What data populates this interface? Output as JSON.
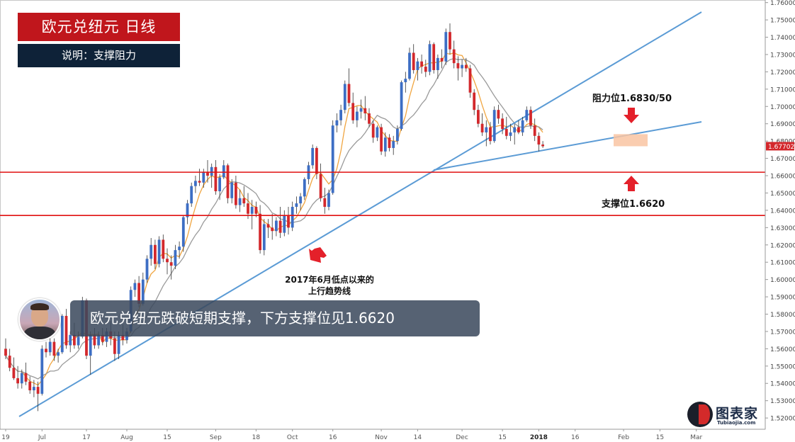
{
  "header": {
    "title": "欧元兑纽元  日线",
    "subtitle": "说明：支撑阻力"
  },
  "banner": {
    "text": "欧元兑纽元跌破短期支撑，下方支撑位见1.6620"
  },
  "logo": {
    "name": "图表家",
    "url": "Tubiaojia.com"
  },
  "colors": {
    "bull": "#3d6ec4",
    "bear": "#d3282c",
    "ma_fast": "#f0a540",
    "ma_slow": "#9a9a9a",
    "trendline": "#5b9bd5",
    "hline": "#e01010",
    "arrow": "#e4202a",
    "zone": "#f9c4a2"
  },
  "chart_data": {
    "type": "candlestick",
    "y_ticks": [
      1.52,
      1.53,
      1.54,
      1.55,
      1.56,
      1.57,
      1.58,
      1.59,
      1.6,
      1.61,
      1.62,
      1.63,
      1.64,
      1.65,
      1.66,
      1.67,
      1.68,
      1.69,
      1.7,
      1.71,
      1.72,
      1.73,
      1.74,
      1.75,
      1.76
    ],
    "ylim": [
      1.5135,
      1.7615
    ],
    "x_labels": [
      {
        "label": "19",
        "bar": 0
      },
      {
        "label": "Jul",
        "bar": 9
      },
      {
        "label": "17",
        "bar": 20
      },
      {
        "label": "Aug",
        "bar": 30
      },
      {
        "label": "15",
        "bar": 40
      },
      {
        "label": "Sep",
        "bar": 52
      },
      {
        "label": "18",
        "bar": 62
      },
      {
        "label": "Oct",
        "bar": 71
      },
      {
        "label": "16",
        "bar": 81
      },
      {
        "label": "Nov",
        "bar": 93
      },
      {
        "label": "14",
        "bar": 102
      },
      {
        "label": "Dec",
        "bar": 113
      },
      {
        "label": "15",
        "bar": 123
      },
      {
        "label": "2018",
        "bar": 132
      },
      {
        "label": "16",
        "bar": 141
      },
      {
        "label": "Feb",
        "bar": 153
      },
      {
        "label": "15",
        "bar": 162
      },
      {
        "label": "Mar",
        "bar": 171
      }
    ],
    "last_price_label": "1.67702",
    "ohlc": [
      [
        1.56,
        1.566,
        1.554,
        1.556
      ],
      [
        1.556,
        1.56,
        1.547,
        1.549
      ],
      [
        1.549,
        1.555,
        1.542,
        1.543
      ],
      [
        1.543,
        1.55,
        1.537,
        1.54
      ],
      [
        1.54,
        1.548,
        1.537,
        1.546
      ],
      [
        1.546,
        1.552,
        1.539,
        1.541
      ],
      [
        1.541,
        1.544,
        1.534,
        1.536
      ],
      [
        1.536,
        1.542,
        1.532,
        1.538
      ],
      [
        1.538,
        1.541,
        1.524,
        1.534
      ],
      [
        1.534,
        1.562,
        1.533,
        1.56
      ],
      [
        1.56,
        1.564,
        1.555,
        1.558
      ],
      [
        1.558,
        1.566,
        1.556,
        1.564
      ],
      [
        1.564,
        1.566,
        1.553,
        1.556
      ],
      [
        1.556,
        1.56,
        1.552,
        1.558
      ],
      [
        1.558,
        1.58,
        1.557,
        1.579
      ],
      [
        1.579,
        1.583,
        1.56,
        1.562
      ],
      [
        1.562,
        1.57,
        1.558,
        1.568
      ],
      [
        1.568,
        1.575,
        1.56,
        1.562
      ],
      [
        1.562,
        1.57,
        1.56,
        1.567
      ],
      [
        1.567,
        1.59,
        1.566,
        1.588
      ],
      [
        1.588,
        1.589,
        1.554,
        1.556
      ],
      [
        1.556,
        1.57,
        1.545,
        1.568
      ],
      [
        1.568,
        1.572,
        1.56,
        1.562
      ],
      [
        1.562,
        1.57,
        1.56,
        1.568
      ],
      [
        1.568,
        1.572,
        1.562,
        1.564
      ],
      [
        1.564,
        1.572,
        1.561,
        1.57
      ],
      [
        1.57,
        1.576,
        1.562,
        1.566
      ],
      [
        1.566,
        1.57,
        1.553,
        1.557
      ],
      [
        1.557,
        1.57,
        1.554,
        1.568
      ],
      [
        1.568,
        1.574,
        1.562,
        1.565
      ],
      [
        1.565,
        1.572,
        1.563,
        1.57
      ],
      [
        1.57,
        1.596,
        1.569,
        1.594
      ],
      [
        1.594,
        1.6,
        1.59,
        1.598
      ],
      [
        1.598,
        1.602,
        1.584,
        1.586
      ],
      [
        1.586,
        1.604,
        1.585,
        1.6
      ],
      [
        1.6,
        1.614,
        1.598,
        1.612
      ],
      [
        1.612,
        1.624,
        1.608,
        1.62
      ],
      [
        1.62,
        1.623,
        1.606,
        1.609
      ],
      [
        1.609,
        1.625,
        1.607,
        1.623
      ],
      [
        1.623,
        1.626,
        1.61,
        1.612
      ],
      [
        1.612,
        1.618,
        1.603,
        1.61
      ],
      [
        1.61,
        1.614,
        1.6,
        1.608
      ],
      [
        1.608,
        1.62,
        1.606,
        1.617
      ],
      [
        1.617,
        1.622,
        1.612,
        1.619
      ],
      [
        1.619,
        1.637,
        1.616,
        1.636
      ],
      [
        1.636,
        1.646,
        1.632,
        1.644
      ],
      [
        1.644,
        1.656,
        1.642,
        1.654
      ],
      [
        1.654,
        1.66,
        1.65,
        1.657
      ],
      [
        1.657,
        1.664,
        1.654,
        1.656
      ],
      [
        1.656,
        1.664,
        1.653,
        1.662
      ],
      [
        1.662,
        1.669,
        1.656,
        1.66
      ],
      [
        1.66,
        1.667,
        1.653,
        1.665
      ],
      [
        1.665,
        1.669,
        1.649,
        1.651
      ],
      [
        1.651,
        1.661,
        1.646,
        1.659
      ],
      [
        1.659,
        1.669,
        1.658,
        1.666
      ],
      [
        1.666,
        1.667,
        1.644,
        1.647
      ],
      [
        1.647,
        1.658,
        1.644,
        1.656
      ],
      [
        1.656,
        1.66,
        1.641,
        1.643
      ],
      [
        1.643,
        1.652,
        1.639,
        1.647
      ],
      [
        1.647,
        1.654,
        1.642,
        1.644
      ],
      [
        1.644,
        1.65,
        1.635,
        1.638
      ],
      [
        1.638,
        1.646,
        1.629,
        1.642
      ],
      [
        1.642,
        1.645,
        1.636,
        1.638
      ],
      [
        1.638,
        1.643,
        1.615,
        1.617
      ],
      [
        1.617,
        1.635,
        1.614,
        1.632
      ],
      [
        1.632,
        1.635,
        1.624,
        1.63
      ],
      [
        1.63,
        1.638,
        1.623,
        1.628
      ],
      [
        1.628,
        1.636,
        1.625,
        1.634
      ],
      [
        1.634,
        1.642,
        1.624,
        1.627
      ],
      [
        1.627,
        1.64,
        1.625,
        1.637
      ],
      [
        1.637,
        1.642,
        1.626,
        1.63
      ],
      [
        1.63,
        1.645,
        1.628,
        1.642
      ],
      [
        1.642,
        1.648,
        1.638,
        1.644
      ],
      [
        1.644,
        1.65,
        1.64,
        1.648
      ],
      [
        1.648,
        1.659,
        1.646,
        1.658
      ],
      [
        1.658,
        1.668,
        1.655,
        1.666
      ],
      [
        1.666,
        1.678,
        1.664,
        1.676
      ],
      [
        1.676,
        1.677,
        1.658,
        1.661
      ],
      [
        1.661,
        1.667,
        1.645,
        1.647
      ],
      [
        1.647,
        1.653,
        1.638,
        1.642
      ],
      [
        1.642,
        1.652,
        1.64,
        1.65
      ],
      [
        1.65,
        1.692,
        1.649,
        1.689
      ],
      [
        1.689,
        1.696,
        1.685,
        1.692
      ],
      [
        1.692,
        1.701,
        1.689,
        1.698
      ],
      [
        1.698,
        1.715,
        1.696,
        1.713
      ],
      [
        1.713,
        1.722,
        1.7,
        1.702
      ],
      [
        1.702,
        1.708,
        1.69,
        1.692
      ],
      [
        1.692,
        1.7,
        1.688,
        1.697
      ],
      [
        1.697,
        1.704,
        1.693,
        1.699
      ],
      [
        1.699,
        1.706,
        1.692,
        1.696
      ],
      [
        1.696,
        1.699,
        1.688,
        1.69
      ],
      [
        1.69,
        1.692,
        1.679,
        1.682
      ],
      [
        1.682,
        1.689,
        1.68,
        1.688
      ],
      [
        1.688,
        1.69,
        1.672,
        1.674
      ],
      [
        1.674,
        1.685,
        1.671,
        1.682
      ],
      [
        1.682,
        1.684,
        1.674,
        1.676
      ],
      [
        1.676,
        1.683,
        1.672,
        1.68
      ],
      [
        1.68,
        1.689,
        1.678,
        1.687
      ],
      [
        1.687,
        1.715,
        1.686,
        1.714
      ],
      [
        1.714,
        1.72,
        1.708,
        1.716
      ],
      [
        1.716,
        1.734,
        1.715,
        1.731
      ],
      [
        1.731,
        1.736,
        1.719,
        1.721
      ],
      [
        1.721,
        1.728,
        1.715,
        1.726
      ],
      [
        1.726,
        1.73,
        1.719,
        1.723
      ],
      [
        1.723,
        1.727,
        1.717,
        1.72
      ],
      [
        1.72,
        1.738,
        1.718,
        1.736
      ],
      [
        1.736,
        1.737,
        1.719,
        1.721
      ],
      [
        1.721,
        1.73,
        1.716,
        1.728
      ],
      [
        1.728,
        1.733,
        1.722,
        1.726
      ],
      [
        1.726,
        1.745,
        1.724,
        1.743
      ],
      [
        1.743,
        1.748,
        1.73,
        1.733
      ],
      [
        1.733,
        1.738,
        1.722,
        1.725
      ],
      [
        1.725,
        1.729,
        1.715,
        1.722
      ],
      [
        1.722,
        1.727,
        1.717,
        1.724
      ],
      [
        1.724,
        1.728,
        1.72,
        1.722
      ],
      [
        1.722,
        1.724,
        1.705,
        1.708
      ],
      [
        1.708,
        1.71,
        1.695,
        1.698
      ],
      [
        1.698,
        1.701,
        1.688,
        1.69
      ],
      [
        1.69,
        1.696,
        1.683,
        1.685
      ],
      [
        1.685,
        1.692,
        1.677,
        1.688
      ],
      [
        1.688,
        1.691,
        1.678,
        1.68
      ],
      [
        1.68,
        1.7,
        1.679,
        1.698
      ],
      [
        1.698,
        1.701,
        1.69,
        1.693
      ],
      [
        1.693,
        1.696,
        1.684,
        1.687
      ],
      [
        1.687,
        1.694,
        1.681,
        1.683
      ],
      [
        1.683,
        1.69,
        1.68,
        1.685
      ],
      [
        1.685,
        1.69,
        1.678,
        1.688
      ],
      [
        1.688,
        1.692,
        1.684,
        1.685
      ],
      [
        1.685,
        1.694,
        1.683,
        1.692
      ],
      [
        1.692,
        1.7,
        1.691,
        1.698
      ],
      [
        1.698,
        1.7,
        1.687,
        1.689
      ],
      [
        1.689,
        1.693,
        1.68,
        1.683
      ],
      [
        1.683,
        1.685,
        1.674,
        1.678
      ],
      [
        1.678,
        1.68,
        1.676,
        1.677
      ]
    ],
    "horizontal_lines": [
      1.662,
      1.637
    ],
    "annotations": {
      "resistance": "阻力位1.6830/50",
      "support": "支撑位1.6620",
      "trendline_note_line1": "2017年6月低点以来的",
      "trendline_note_line2": "上行趋势线"
    },
    "resistance_zone": [
      1.677,
      1.684
    ]
  }
}
